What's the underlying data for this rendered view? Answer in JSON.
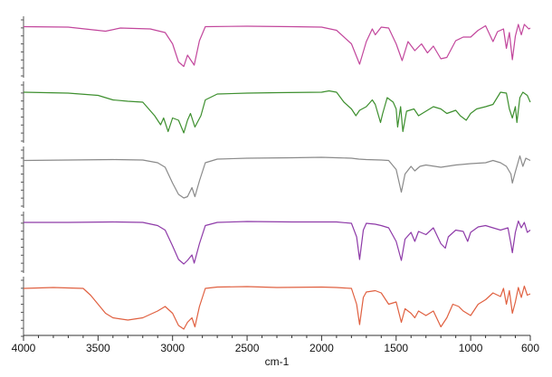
{
  "chart_data": {
    "type": "line",
    "title": "",
    "xlabel": "cm-1",
    "ylabel": "",
    "xlim": [
      4000,
      600
    ],
    "x_reversed": true,
    "x_ticks": [
      "4000",
      "3500",
      "3000",
      "2500",
      "2000",
      "1500",
      "1000",
      "600"
    ],
    "x_tick_values": [
      4000,
      3500,
      3000,
      2500,
      2000,
      1500,
      1000,
      600
    ],
    "ylim": [
      0,
      1
    ],
    "y_unit": "relative transmittance (stacked, unlabeled)",
    "grid": false,
    "legend": "none",
    "series": [
      {
        "color": "#c2469c",
        "points": [
          [
            4000,
            0.93
          ],
          [
            3700,
            0.92
          ],
          [
            3450,
            0.83
          ],
          [
            3350,
            0.9
          ],
          [
            3150,
            0.88
          ],
          [
            3050,
            0.8
          ],
          [
            3000,
            0.55
          ],
          [
            2960,
            0.15
          ],
          [
            2925,
            0.05
          ],
          [
            2900,
            0.3
          ],
          [
            2855,
            0.08
          ],
          [
            2820,
            0.62
          ],
          [
            2780,
            0.93
          ],
          [
            2500,
            0.94
          ],
          [
            2200,
            0.93
          ],
          [
            2000,
            0.92
          ],
          [
            1900,
            0.85
          ],
          [
            1800,
            0.55
          ],
          [
            1745,
            0.1
          ],
          [
            1700,
            0.6
          ],
          [
            1660,
            0.88
          ],
          [
            1640,
            0.75
          ],
          [
            1600,
            0.92
          ],
          [
            1550,
            0.9
          ],
          [
            1500,
            0.55
          ],
          [
            1460,
            0.18
          ],
          [
            1420,
            0.6
          ],
          [
            1375,
            0.4
          ],
          [
            1330,
            0.55
          ],
          [
            1290,
            0.35
          ],
          [
            1250,
            0.5
          ],
          [
            1200,
            0.22
          ],
          [
            1160,
            0.25
          ],
          [
            1100,
            0.62
          ],
          [
            1050,
            0.7
          ],
          [
            1000,
            0.7
          ],
          [
            950,
            0.85
          ],
          [
            900,
            0.95
          ],
          [
            850,
            0.6
          ],
          [
            820,
            0.82
          ],
          [
            780,
            0.88
          ],
          [
            760,
            0.45
          ],
          [
            740,
            0.8
          ],
          [
            720,
            0.2
          ],
          [
            700,
            0.72
          ],
          [
            680,
            0.98
          ],
          [
            660,
            0.75
          ],
          [
            640,
            0.98
          ],
          [
            610,
            0.88
          ],
          [
            600,
            0.9
          ]
        ]
      },
      {
        "color": "#3d8f2e",
        "points": [
          [
            4000,
            0.92
          ],
          [
            3700,
            0.9
          ],
          [
            3500,
            0.85
          ],
          [
            3400,
            0.75
          ],
          [
            3300,
            0.72
          ],
          [
            3200,
            0.7
          ],
          [
            3120,
            0.4
          ],
          [
            3080,
            0.2
          ],
          [
            3060,
            0.35
          ],
          [
            3030,
            0.05
          ],
          [
            3000,
            0.35
          ],
          [
            2960,
            0.3
          ],
          [
            2925,
            0.02
          ],
          [
            2900,
            0.3
          ],
          [
            2880,
            0.45
          ],
          [
            2850,
            0.15
          ],
          [
            2810,
            0.4
          ],
          [
            2780,
            0.75
          ],
          [
            2700,
            0.88
          ],
          [
            2500,
            0.9
          ],
          [
            2300,
            0.91
          ],
          [
            2000,
            0.92
          ],
          [
            1950,
            0.95
          ],
          [
            1900,
            0.92
          ],
          [
            1850,
            0.7
          ],
          [
            1800,
            0.55
          ],
          [
            1770,
            0.4
          ],
          [
            1745,
            0.52
          ],
          [
            1700,
            0.6
          ],
          [
            1660,
            0.75
          ],
          [
            1640,
            0.65
          ],
          [
            1605,
            0.25
          ],
          [
            1590,
            0.45
          ],
          [
            1560,
            0.8
          ],
          [
            1520,
            0.7
          ],
          [
            1500,
            0.55
          ],
          [
            1490,
            0.15
          ],
          [
            1470,
            0.6
          ],
          [
            1455,
            0.05
          ],
          [
            1430,
            0.5
          ],
          [
            1380,
            0.55
          ],
          [
            1350,
            0.4
          ],
          [
            1300,
            0.5
          ],
          [
            1250,
            0.6
          ],
          [
            1200,
            0.55
          ],
          [
            1160,
            0.45
          ],
          [
            1100,
            0.52
          ],
          [
            1070,
            0.4
          ],
          [
            1030,
            0.3
          ],
          [
            1000,
            0.45
          ],
          [
            960,
            0.55
          ],
          [
            900,
            0.6
          ],
          [
            850,
            0.65
          ],
          [
            800,
            0.92
          ],
          [
            760,
            0.9
          ],
          [
            740,
            0.55
          ],
          [
            720,
            0.35
          ],
          [
            700,
            0.6
          ],
          [
            690,
            0.25
          ],
          [
            670,
            0.8
          ],
          [
            650,
            0.92
          ],
          [
            620,
            0.85
          ],
          [
            600,
            0.7
          ]
        ]
      },
      {
        "color": "#8a8a8a",
        "points": [
          [
            4000,
            0.85
          ],
          [
            3700,
            0.86
          ],
          [
            3400,
            0.87
          ],
          [
            3200,
            0.86
          ],
          [
            3100,
            0.8
          ],
          [
            3050,
            0.7
          ],
          [
            3000,
            0.35
          ],
          [
            2960,
            0.1
          ],
          [
            2925,
            0.02
          ],
          [
            2900,
            0.05
          ],
          [
            2870,
            0.25
          ],
          [
            2850,
            0.05
          ],
          [
            2820,
            0.4
          ],
          [
            2780,
            0.8
          ],
          [
            2700,
            0.88
          ],
          [
            2500,
            0.9
          ],
          [
            2200,
            0.91
          ],
          [
            2000,
            0.92
          ],
          [
            1900,
            0.91
          ],
          [
            1800,
            0.9
          ],
          [
            1750,
            0.88
          ],
          [
            1700,
            0.87
          ],
          [
            1600,
            0.86
          ],
          [
            1550,
            0.85
          ],
          [
            1500,
            0.65
          ],
          [
            1465,
            0.15
          ],
          [
            1440,
            0.55
          ],
          [
            1400,
            0.72
          ],
          [
            1375,
            0.62
          ],
          [
            1340,
            0.72
          ],
          [
            1300,
            0.75
          ],
          [
            1200,
            0.7
          ],
          [
            1100,
            0.75
          ],
          [
            1000,
            0.78
          ],
          [
            900,
            0.8
          ],
          [
            850,
            0.85
          ],
          [
            800,
            0.8
          ],
          [
            760,
            0.72
          ],
          [
            730,
            0.55
          ],
          [
            720,
            0.35
          ],
          [
            700,
            0.6
          ],
          [
            670,
            0.95
          ],
          [
            650,
            0.72
          ],
          [
            630,
            0.9
          ],
          [
            600,
            0.85
          ]
        ]
      },
      {
        "color": "#8e3aa8",
        "points": [
          [
            4000,
            0.92
          ],
          [
            3700,
            0.92
          ],
          [
            3400,
            0.93
          ],
          [
            3200,
            0.92
          ],
          [
            3100,
            0.85
          ],
          [
            3050,
            0.75
          ],
          [
            3000,
            0.4
          ],
          [
            2960,
            0.1
          ],
          [
            2925,
            0.0
          ],
          [
            2900,
            0.08
          ],
          [
            2870,
            0.2
          ],
          [
            2855,
            0.02
          ],
          [
            2820,
            0.45
          ],
          [
            2780,
            0.85
          ],
          [
            2700,
            0.92
          ],
          [
            2500,
            0.94
          ],
          [
            2200,
            0.93
          ],
          [
            2000,
            0.93
          ],
          [
            1900,
            0.93
          ],
          [
            1800,
            0.9
          ],
          [
            1765,
            0.6
          ],
          [
            1745,
            0.1
          ],
          [
            1720,
            0.75
          ],
          [
            1700,
            0.9
          ],
          [
            1640,
            0.88
          ],
          [
            1600,
            0.85
          ],
          [
            1550,
            0.8
          ],
          [
            1500,
            0.5
          ],
          [
            1465,
            0.08
          ],
          [
            1440,
            0.55
          ],
          [
            1400,
            0.7
          ],
          [
            1375,
            0.5
          ],
          [
            1350,
            0.72
          ],
          [
            1300,
            0.65
          ],
          [
            1250,
            0.8
          ],
          [
            1200,
            0.45
          ],
          [
            1170,
            0.35
          ],
          [
            1150,
            0.6
          ],
          [
            1100,
            0.75
          ],
          [
            1050,
            0.72
          ],
          [
            1020,
            0.5
          ],
          [
            1000,
            0.7
          ],
          [
            950,
            0.82
          ],
          [
            900,
            0.85
          ],
          [
            850,
            0.8
          ],
          [
            800,
            0.75
          ],
          [
            750,
            0.8
          ],
          [
            730,
            0.45
          ],
          [
            720,
            0.25
          ],
          [
            700,
            0.7
          ],
          [
            680,
            0.95
          ],
          [
            660,
            0.8
          ],
          [
            640,
            0.92
          ],
          [
            620,
            0.7
          ],
          [
            600,
            0.75
          ]
        ]
      },
      {
        "color": "#e06040",
        "points": [
          [
            4000,
            0.9
          ],
          [
            3800,
            0.92
          ],
          [
            3600,
            0.9
          ],
          [
            3550,
            0.75
          ],
          [
            3450,
            0.35
          ],
          [
            3400,
            0.25
          ],
          [
            3300,
            0.2
          ],
          [
            3200,
            0.25
          ],
          [
            3100,
            0.4
          ],
          [
            3050,
            0.5
          ],
          [
            3000,
            0.35
          ],
          [
            2960,
            0.08
          ],
          [
            2925,
            0.0
          ],
          [
            2900,
            0.15
          ],
          [
            2870,
            0.25
          ],
          [
            2850,
            0.05
          ],
          [
            2820,
            0.5
          ],
          [
            2780,
            0.9
          ],
          [
            2700,
            0.93
          ],
          [
            2500,
            0.94
          ],
          [
            2300,
            0.92
          ],
          [
            2000,
            0.93
          ],
          [
            1900,
            0.92
          ],
          [
            1800,
            0.9
          ],
          [
            1765,
            0.55
          ],
          [
            1745,
            0.1
          ],
          [
            1720,
            0.7
          ],
          [
            1700,
            0.82
          ],
          [
            1640,
            0.85
          ],
          [
            1600,
            0.8
          ],
          [
            1550,
            0.55
          ],
          [
            1500,
            0.6
          ],
          [
            1465,
            0.15
          ],
          [
            1440,
            0.45
          ],
          [
            1400,
            0.35
          ],
          [
            1375,
            0.25
          ],
          [
            1350,
            0.4
          ],
          [
            1300,
            0.3
          ],
          [
            1250,
            0.4
          ],
          [
            1200,
            0.05
          ],
          [
            1160,
            0.25
          ],
          [
            1120,
            0.55
          ],
          [
            1080,
            0.5
          ],
          [
            1050,
            0.4
          ],
          [
            1000,
            0.3
          ],
          [
            950,
            0.55
          ],
          [
            900,
            0.65
          ],
          [
            850,
            0.8
          ],
          [
            800,
            0.72
          ],
          [
            780,
            0.9
          ],
          [
            760,
            0.55
          ],
          [
            740,
            0.85
          ],
          [
            720,
            0.35
          ],
          [
            700,
            0.6
          ],
          [
            680,
            0.92
          ],
          [
            660,
            0.7
          ],
          [
            640,
            0.95
          ],
          [
            620,
            0.75
          ],
          [
            600,
            0.78
          ]
        ]
      }
    ]
  }
}
